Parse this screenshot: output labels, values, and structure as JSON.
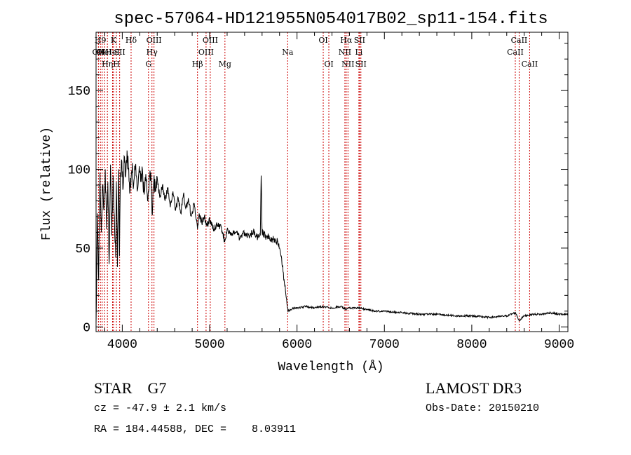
{
  "chart_data": {
    "type": "line",
    "title": "spec-57064-HD121955N054017B02_sp11-154.fits",
    "xlabel": "Wavelength (Å)",
    "ylabel": "Flux (relative)",
    "xlim": [
      3700,
      9100
    ],
    "ylim": [
      -3,
      187
    ],
    "x_ticks": [
      4000,
      5000,
      6000,
      7000,
      8000,
      9000
    ],
    "x_tick_labels": [
      "4000",
      "5000",
      "6000",
      "7000",
      "8000",
      "9000"
    ],
    "y_ticks": [
      0,
      50,
      100,
      150
    ],
    "y_tick_labels": [
      "0",
      "50",
      "100",
      "150"
    ],
    "grid": false,
    "series": [
      {
        "x": [
          3700,
          3715,
          3730,
          3745,
          3760,
          3775,
          3790,
          3805,
          3820,
          3835,
          3850,
          3865,
          3880,
          3895,
          3910,
          3925,
          3933,
          3945,
          3960,
          3968,
          3980,
          3995,
          4010,
          4025,
          4040,
          4055,
          4070,
          4085,
          4101,
          4115,
          4130,
          4150,
          4170,
          4190,
          4210,
          4230,
          4250,
          4270,
          4290,
          4310,
          4330,
          4340,
          4360,
          4380,
          4400,
          4430,
          4460,
          4490,
          4520,
          4550,
          4580,
          4610,
          4640,
          4670,
          4700,
          4730,
          4760,
          4790,
          4820,
          4850,
          4861,
          4880,
          4910,
          4940,
          4970,
          5000,
          5050,
          5100,
          5150,
          5172,
          5200,
          5250,
          5300,
          5350,
          5400,
          5450,
          5500,
          5550,
          5580,
          5590,
          5600,
          5650,
          5700,
          5750,
          5780,
          5800,
          5820,
          5840,
          5860,
          5880,
          5893,
          5910,
          5930,
          5960,
          6000,
          6100,
          6200,
          6300,
          6400,
          6500,
          6563,
          6600,
          6700,
          6800,
          6900,
          7000,
          7200,
          7400,
          7600,
          7800,
          8000,
          8200,
          8400,
          8500,
          8542,
          8600,
          8700,
          8800,
          8900,
          9000,
          9100
        ],
        "y": [
          2,
          72,
          30,
          98,
          60,
          90,
          74,
          100,
          62,
          92,
          40,
          103,
          58,
          96,
          70,
          44,
          92,
          38,
          100,
          45,
          98,
          105,
          88,
          108,
          95,
          112,
          100,
          85,
          94,
          104,
          90,
          102,
          86,
          98,
          92,
          100,
          84,
          97,
          80,
          96,
          94,
          72,
          92,
          86,
          95,
          82,
          90,
          80,
          88,
          76,
          86,
          74,
          82,
          72,
          84,
          76,
          80,
          70,
          78,
          68,
          62,
          72,
          66,
          70,
          64,
          68,
          62,
          66,
          60,
          54,
          62,
          58,
          60,
          56,
          60,
          58,
          60,
          57,
          58,
          96,
          60,
          57,
          56,
          55,
          54,
          50,
          45,
          35,
          26,
          18,
          12,
          10,
          11,
          12,
          12,
          13,
          12,
          13,
          12,
          13,
          11,
          12,
          12,
          11,
          10,
          10,
          9,
          8,
          8,
          7,
          7,
          6,
          7,
          9,
          4,
          7,
          8,
          8,
          9,
          8,
          8
        ]
      }
    ],
    "line_markers": [
      {
        "wl": 3727,
        "label": "OII",
        "row": 1
      },
      {
        "wl": 3750,
        "label": "H9",
        "row": 0
      },
      {
        "wl": 3770,
        "label": "OII",
        "row": 1
      },
      {
        "wl": 3798,
        "label": "HeI",
        "row": 1
      },
      {
        "wl": 3830,
        "label": "Hη",
        "row": 2
      },
      {
        "wl": 3889,
        "label": "HeI",
        "row": 1
      },
      {
        "wl": 3900,
        "label": "K",
        "row": 0
      },
      {
        "wl": 3933,
        "label": "H",
        "row": 2
      },
      {
        "wl": 3970,
        "label": "SII",
        "row": 1
      },
      {
        "wl": 4101,
        "label": "Hδ",
        "row": 0
      },
      {
        "wl": 4300,
        "label": "G",
        "row": 2
      },
      {
        "wl": 4340,
        "label": "Hγ",
        "row": 1
      },
      {
        "wl": 4363,
        "label": "OIII",
        "row": 0
      },
      {
        "wl": 4861,
        "label": "Hβ",
        "row": 2
      },
      {
        "wl": 4959,
        "label": "OIII",
        "row": 1
      },
      {
        "wl": 5007,
        "label": "OIII",
        "row": 0
      },
      {
        "wl": 5175,
        "label": "Mg",
        "row": 2
      },
      {
        "wl": 5893,
        "label": "Na",
        "row": 1
      },
      {
        "wl": 6300,
        "label": "OI",
        "row": 0
      },
      {
        "wl": 6364,
        "label": "OI",
        "row": 2
      },
      {
        "wl": 6548,
        "label": "NII",
        "row": 1
      },
      {
        "wl": 6563,
        "label": "Hα",
        "row": 0
      },
      {
        "wl": 6583,
        "label": "NII",
        "row": 2
      },
      {
        "wl": 6708,
        "label": "Li",
        "row": 1
      },
      {
        "wl": 6716,
        "label": "SII",
        "row": 0
      },
      {
        "wl": 6731,
        "label": "SII",
        "row": 2
      },
      {
        "wl": 8498,
        "label": "CaII",
        "row": 1
      },
      {
        "wl": 8542,
        "label": "CaII",
        "row": 0
      },
      {
        "wl": 8662,
        "label": "CaII",
        "row": 2
      }
    ]
  },
  "info": {
    "class_label": "STAR    G7",
    "cz_text": "cz = -47.9 ± 2.1 km/s",
    "radec_text": "RA = 184.44588, DEC =    8.03911",
    "survey_text": "LAMOST DR3",
    "obsdate_text": "Obs-Date: 20150210"
  },
  "colors": {
    "spectrum": "#000000",
    "line_marker": "#cc0000",
    "axes": "#000000"
  }
}
